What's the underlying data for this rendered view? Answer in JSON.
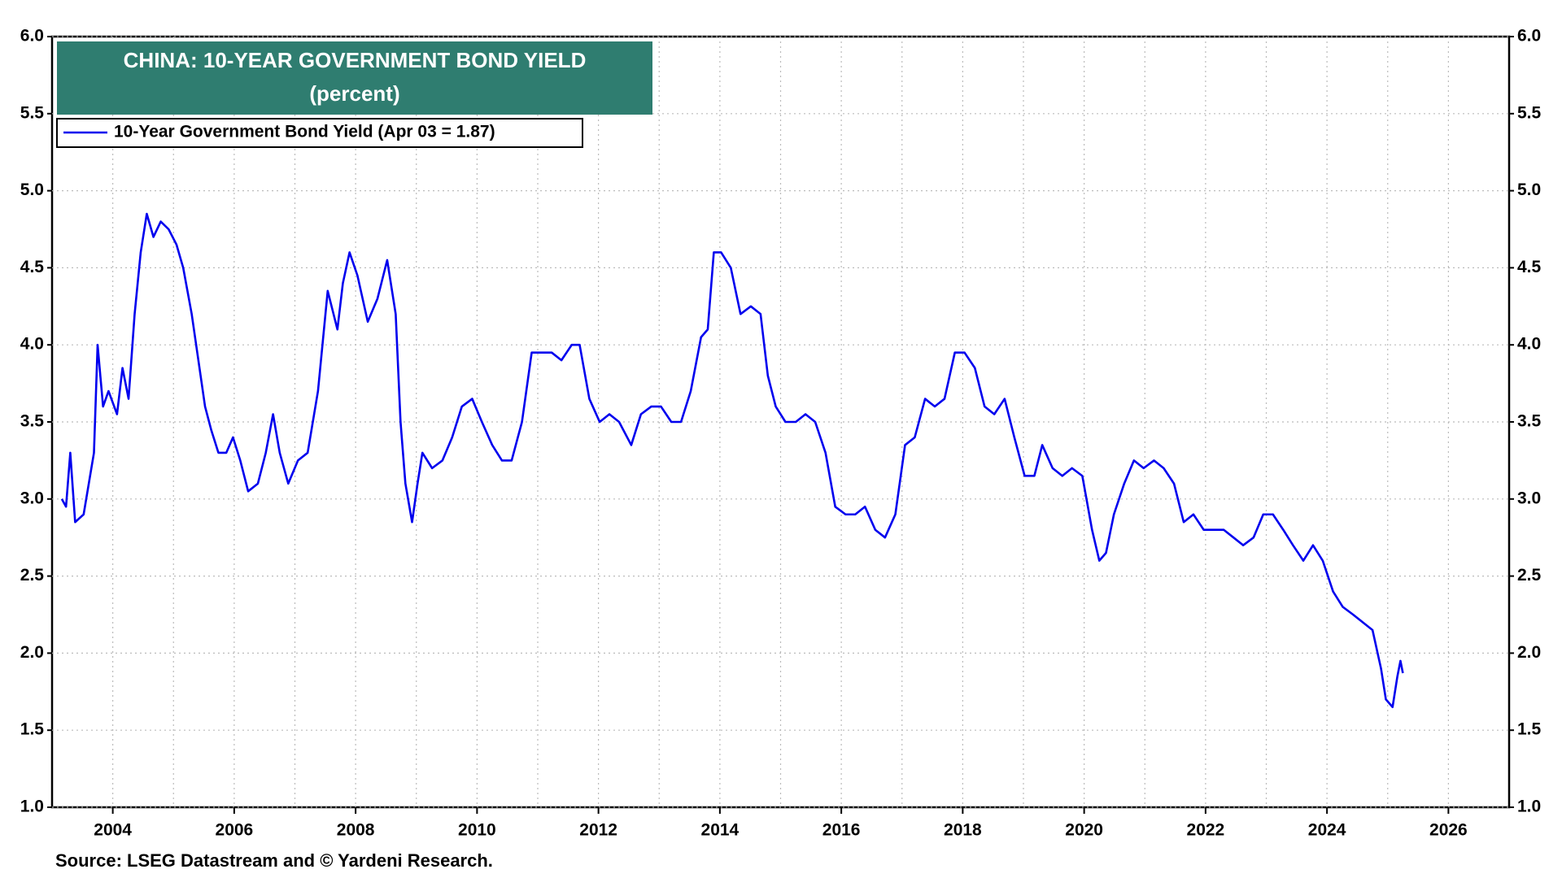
{
  "chart_data": {
    "type": "line",
    "title": "CHINA: 10-YEAR GOVERNMENT BOND YIELD",
    "subtitle": "(percent)",
    "source": "Source: LSEG Datastream and © Yardeni Research.",
    "xlim": [
      2003,
      2027
    ],
    "xticks": [
      2004,
      2006,
      2008,
      2010,
      2012,
      2014,
      2016,
      2018,
      2020,
      2022,
      2024,
      2026
    ],
    "ylim": [
      1,
      6
    ],
    "yticks": [
      {
        "value": 1,
        "label": "1.0"
      },
      {
        "value": 1.5,
        "label": "1.5"
      },
      {
        "value": 2,
        "label": "2.0"
      },
      {
        "value": 2.5,
        "label": "2.5"
      },
      {
        "value": 3,
        "label": "3.0"
      },
      {
        "value": 3.5,
        "label": "3.5"
      },
      {
        "value": 4,
        "label": "4.0"
      },
      {
        "value": 4.5,
        "label": "4.5"
      },
      {
        "value": 5,
        "label": "5.0"
      },
      {
        "value": 5.5,
        "label": "5.5"
      },
      {
        "value": 6,
        "label": "6.0"
      }
    ],
    "y2lim": [
      1,
      6
    ],
    "y2ticks": [
      {
        "value": 1,
        "label": "1.0"
      },
      {
        "value": 1.5,
        "label": "1.5"
      },
      {
        "value": 2,
        "label": "2.0"
      },
      {
        "value": 2.5,
        "label": "2.5"
      },
      {
        "value": 3,
        "label": "3.0"
      },
      {
        "value": 3.5,
        "label": "3.5"
      },
      {
        "value": 4,
        "label": "4.0"
      },
      {
        "value": 4.5,
        "label": "4.5"
      },
      {
        "value": 5,
        "label": "5.0"
      },
      {
        "value": 5.5,
        "label": "5.5"
      },
      {
        "value": 6,
        "label": "6.0"
      }
    ],
    "grid": true,
    "legend": "top-left",
    "x": [
      2003.16,
      2003.23,
      2003.3,
      2003.38,
      2003.52,
      2003.69,
      2003.75,
      2003.84,
      2003.93,
      2004.07,
      2004.16,
      2004.26,
      2004.36,
      2004.46,
      2004.56,
      2004.67,
      2004.79,
      2004.92,
      2005.05,
      2005.16,
      2005.3,
      2005.41,
      2005.52,
      2005.62,
      2005.74,
      2005.87,
      2005.98,
      2006.1,
      2006.23,
      2006.39,
      2006.52,
      2006.64,
      2006.75,
      2006.89,
      2007.05,
      2007.21,
      2007.38,
      2007.54,
      2007.7,
      2007.79,
      2007.9,
      2008.03,
      2008.2,
      2008.36,
      2008.52,
      2008.66,
      2008.74,
      2008.82,
      2008.93,
      2009.02,
      2009.1,
      2009.26,
      2009.43,
      2009.59,
      2009.75,
      2009.92,
      2010.08,
      2010.25,
      2010.41,
      2010.57,
      2010.74,
      2010.9,
      2011.07,
      2011.23,
      2011.39,
      2011.56,
      2011.69,
      2011.85,
      2012.02,
      2012.18,
      2012.34,
      2012.54,
      2012.7,
      2012.87,
      2013.03,
      2013.2,
      2013.36,
      2013.52,
      2013.69,
      2013.8,
      2013.9,
      2014.02,
      2014.18,
      2014.34,
      2014.51,
      2014.67,
      2014.79,
      2014.92,
      2015.08,
      2015.25,
      2015.41,
      2015.57,
      2015.74,
      2015.9,
      2016.07,
      2016.23,
      2016.39,
      2016.56,
      2016.72,
      2016.89,
      2017.05,
      2017.21,
      2017.38,
      2017.54,
      2017.7,
      2017.87,
      2018.03,
      2018.2,
      2018.36,
      2018.52,
      2018.69,
      2018.85,
      2019.02,
      2019.18,
      2019.31,
      2019.48,
      2019.64,
      2019.8,
      2019.97,
      2020.13,
      2020.25,
      2020.36,
      2020.49,
      2020.66,
      2020.82,
      2020.98,
      2021.15,
      2021.31,
      2021.48,
      2021.64,
      2021.8,
      2021.97,
      2022.13,
      2022.3,
      2022.46,
      2022.62,
      2022.79,
      2022.95,
      2023.11,
      2023.28,
      2023.44,
      2023.61,
      2023.77,
      2023.93,
      2024.1,
      2024.26,
      2024.43,
      2024.59,
      2024.75,
      2024.89,
      2024.97,
      2025.08,
      2025.16,
      2025.21,
      2025.25
    ],
    "series": [
      {
        "name": "10-Year Government Bond Yield (Apr 03 = 1.87)",
        "color": "#0000ee",
        "values": [
          3.0,
          2.95,
          3.3,
          2.85,
          2.9,
          3.3,
          4.0,
          3.6,
          3.7,
          3.55,
          3.85,
          3.65,
          4.2,
          4.6,
          4.85,
          4.7,
          4.8,
          4.75,
          4.65,
          4.5,
          4.2,
          3.9,
          3.6,
          3.45,
          3.3,
          3.3,
          3.4,
          3.25,
          3.05,
          3.1,
          3.3,
          3.55,
          3.3,
          3.1,
          3.25,
          3.3,
          3.7,
          4.35,
          4.1,
          4.4,
          4.6,
          4.45,
          4.15,
          4.3,
          4.55,
          4.2,
          3.5,
          3.1,
          2.85,
          3.1,
          3.3,
          3.2,
          3.25,
          3.4,
          3.6,
          3.65,
          3.5,
          3.35,
          3.25,
          3.25,
          3.5,
          3.95,
          3.95,
          3.95,
          3.9,
          4.0,
          4.0,
          3.65,
          3.5,
          3.55,
          3.5,
          3.35,
          3.55,
          3.6,
          3.6,
          3.5,
          3.5,
          3.7,
          4.05,
          4.1,
          4.6,
          4.6,
          4.5,
          4.2,
          4.25,
          4.2,
          3.8,
          3.6,
          3.5,
          3.5,
          3.55,
          3.5,
          3.3,
          2.95,
          2.9,
          2.9,
          2.95,
          2.8,
          2.75,
          2.9,
          3.35,
          3.4,
          3.65,
          3.6,
          3.65,
          3.95,
          3.95,
          3.85,
          3.6,
          3.55,
          3.65,
          3.4,
          3.15,
          3.15,
          3.35,
          3.2,
          3.15,
          3.2,
          3.15,
          2.8,
          2.6,
          2.65,
          2.9,
          3.1,
          3.25,
          3.2,
          3.25,
          3.2,
          3.1,
          2.85,
          2.9,
          2.8,
          2.8,
          2.8,
          2.75,
          2.7,
          2.75,
          2.9,
          2.9,
          2.8,
          2.7,
          2.6,
          2.7,
          2.6,
          2.4,
          2.3,
          2.25,
          2.2,
          2.15,
          1.9,
          1.7,
          1.65,
          1.85,
          1.95,
          1.87
        ]
      }
    ]
  }
}
